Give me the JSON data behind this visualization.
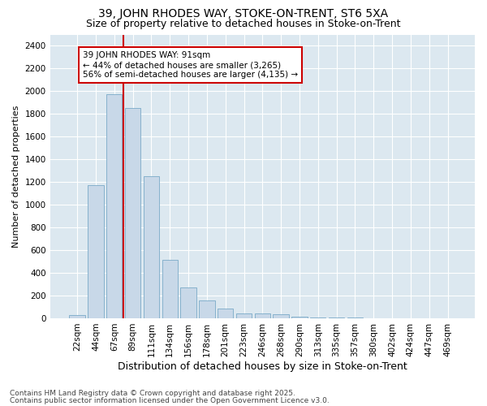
{
  "title": "39, JOHN RHODES WAY, STOKE-ON-TRENT, ST6 5XA",
  "subtitle": "Size of property relative to detached houses in Stoke-on-Trent",
  "xlabel": "Distribution of detached houses by size in Stoke-on-Trent",
  "ylabel": "Number of detached properties",
  "categories": [
    "22sqm",
    "44sqm",
    "67sqm",
    "89sqm",
    "111sqm",
    "134sqm",
    "156sqm",
    "178sqm",
    "201sqm",
    "223sqm",
    "246sqm",
    "268sqm",
    "290sqm",
    "313sqm",
    "335sqm",
    "357sqm",
    "380sqm",
    "402sqm",
    "424sqm",
    "447sqm",
    "469sqm"
  ],
  "values": [
    25,
    1175,
    1975,
    1850,
    1250,
    515,
    275,
    155,
    85,
    45,
    40,
    35,
    15,
    10,
    8,
    5,
    3,
    2,
    1,
    1,
    1
  ],
  "bar_color": "#c8d8e8",
  "bar_edge_color": "#7aaac8",
  "vline_color": "#cc0000",
  "vline_x_index": 3,
  "annotation_text": "39 JOHN RHODES WAY: 91sqm\n← 44% of detached houses are smaller (3,265)\n56% of semi-detached houses are larger (4,135) →",
  "annotation_box_facecolor": "#ffffff",
  "annotation_box_edgecolor": "#cc0000",
  "footer_line1": "Contains HM Land Registry data © Crown copyright and database right 2025.",
  "footer_line2": "Contains public sector information licensed under the Open Government Licence v3.0.",
  "ylim": [
    0,
    2500
  ],
  "yticks": [
    0,
    200,
    400,
    600,
    800,
    1000,
    1200,
    1400,
    1600,
    1800,
    2000,
    2200,
    2400
  ],
  "fig_bg_color": "#ffffff",
  "plot_bg_color": "#dce8f0",
  "grid_color": "#ffffff",
  "title_fontsize": 10,
  "subtitle_fontsize": 9,
  "xlabel_fontsize": 9,
  "ylabel_fontsize": 8,
  "tick_fontsize": 7.5,
  "annotation_fontsize": 7.5,
  "footer_fontsize": 6.5
}
